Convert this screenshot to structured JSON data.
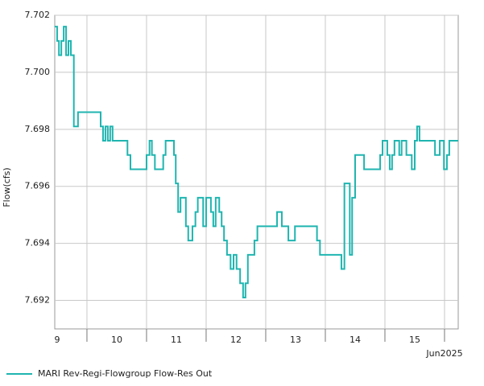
{
  "chart_data": {
    "type": "line",
    "step": "post",
    "y_label": "Flow(cfs)",
    "x_unit_label": "Jun2025",
    "xlim": [
      9.46,
      16.23
    ],
    "ylim": [
      7.691,
      7.702
    ],
    "xticks": [
      {
        "value": 9.5,
        "label": "9"
      },
      {
        "value": 10.5,
        "label": "10"
      },
      {
        "value": 11.5,
        "label": "11"
      },
      {
        "value": 12.5,
        "label": "12"
      },
      {
        "value": 13.5,
        "label": "13"
      },
      {
        "value": 14.5,
        "label": "14"
      },
      {
        "value": 15.5,
        "label": "15"
      }
    ],
    "xgrid": [
      10,
      11,
      12,
      13,
      14,
      15,
      16
    ],
    "yticks": [
      7.692,
      7.694,
      7.696,
      7.698,
      7.7,
      7.702
    ],
    "ytick_labels": [
      "7.692",
      "7.694",
      "7.696",
      "7.698",
      "7.700",
      "7.702"
    ],
    "grid": true,
    "legend": "bottom-left",
    "series": [
      {
        "name": "MARI Rev-Regi-Flowgroup Flow-Res Out",
        "color": "#1fb5b0",
        "x": [
          9.46,
          9.5,
          9.53,
          9.57,
          9.61,
          9.65,
          9.69,
          9.73,
          9.78,
          9.85,
          10.23,
          10.27,
          10.31,
          10.35,
          10.39,
          10.43,
          10.68,
          10.73,
          11.0,
          11.05,
          11.09,
          11.14,
          11.28,
          11.32,
          11.46,
          11.49,
          11.53,
          11.57,
          11.66,
          11.7,
          11.77,
          11.82,
          11.86,
          11.95,
          12.0,
          12.08,
          12.12,
          12.16,
          12.22,
          12.26,
          12.3,
          12.35,
          12.41,
          12.46,
          12.51,
          12.57,
          12.62,
          12.66,
          12.7,
          12.81,
          12.86,
          13.19,
          13.27,
          13.38,
          13.49,
          13.86,
          13.91,
          14.27,
          14.32,
          14.41,
          14.45,
          14.5,
          14.65,
          14.92,
          14.96,
          15.04,
          15.08,
          15.12,
          15.16,
          15.24,
          15.28,
          15.36,
          15.45,
          15.5,
          15.54,
          15.58,
          15.84,
          15.92,
          15.99,
          16.04,
          16.08,
          16.23
        ],
        "values": [
          7.7016,
          7.7011,
          7.7006,
          7.7011,
          7.7016,
          7.7006,
          7.7011,
          7.7006,
          7.6981,
          7.6986,
          7.6981,
          7.6976,
          7.6981,
          7.6976,
          7.6981,
          7.6976,
          7.6971,
          7.6966,
          7.6971,
          7.6976,
          7.6971,
          7.6966,
          7.6971,
          7.6976,
          7.6971,
          7.6961,
          7.6951,
          7.6956,
          7.6946,
          7.6941,
          7.6946,
          7.6951,
          7.6956,
          7.6946,
          7.6956,
          7.6951,
          7.6946,
          7.6956,
          7.6951,
          7.6946,
          7.6941,
          7.6936,
          7.6931,
          7.6936,
          7.6931,
          7.6926,
          7.6921,
          7.6926,
          7.6936,
          7.6941,
          7.6946,
          7.6951,
          7.6946,
          7.6941,
          7.6946,
          7.6941,
          7.6936,
          7.6931,
          7.6961,
          7.6936,
          7.6956,
          7.6971,
          7.6966,
          7.6971,
          7.6976,
          7.6971,
          7.6966,
          7.6971,
          7.6976,
          7.6971,
          7.6976,
          7.6971,
          7.6966,
          7.6976,
          7.6981,
          7.6976,
          7.6971,
          7.6976,
          7.6966,
          7.6971,
          7.6976,
          7.6976
        ]
      }
    ]
  }
}
